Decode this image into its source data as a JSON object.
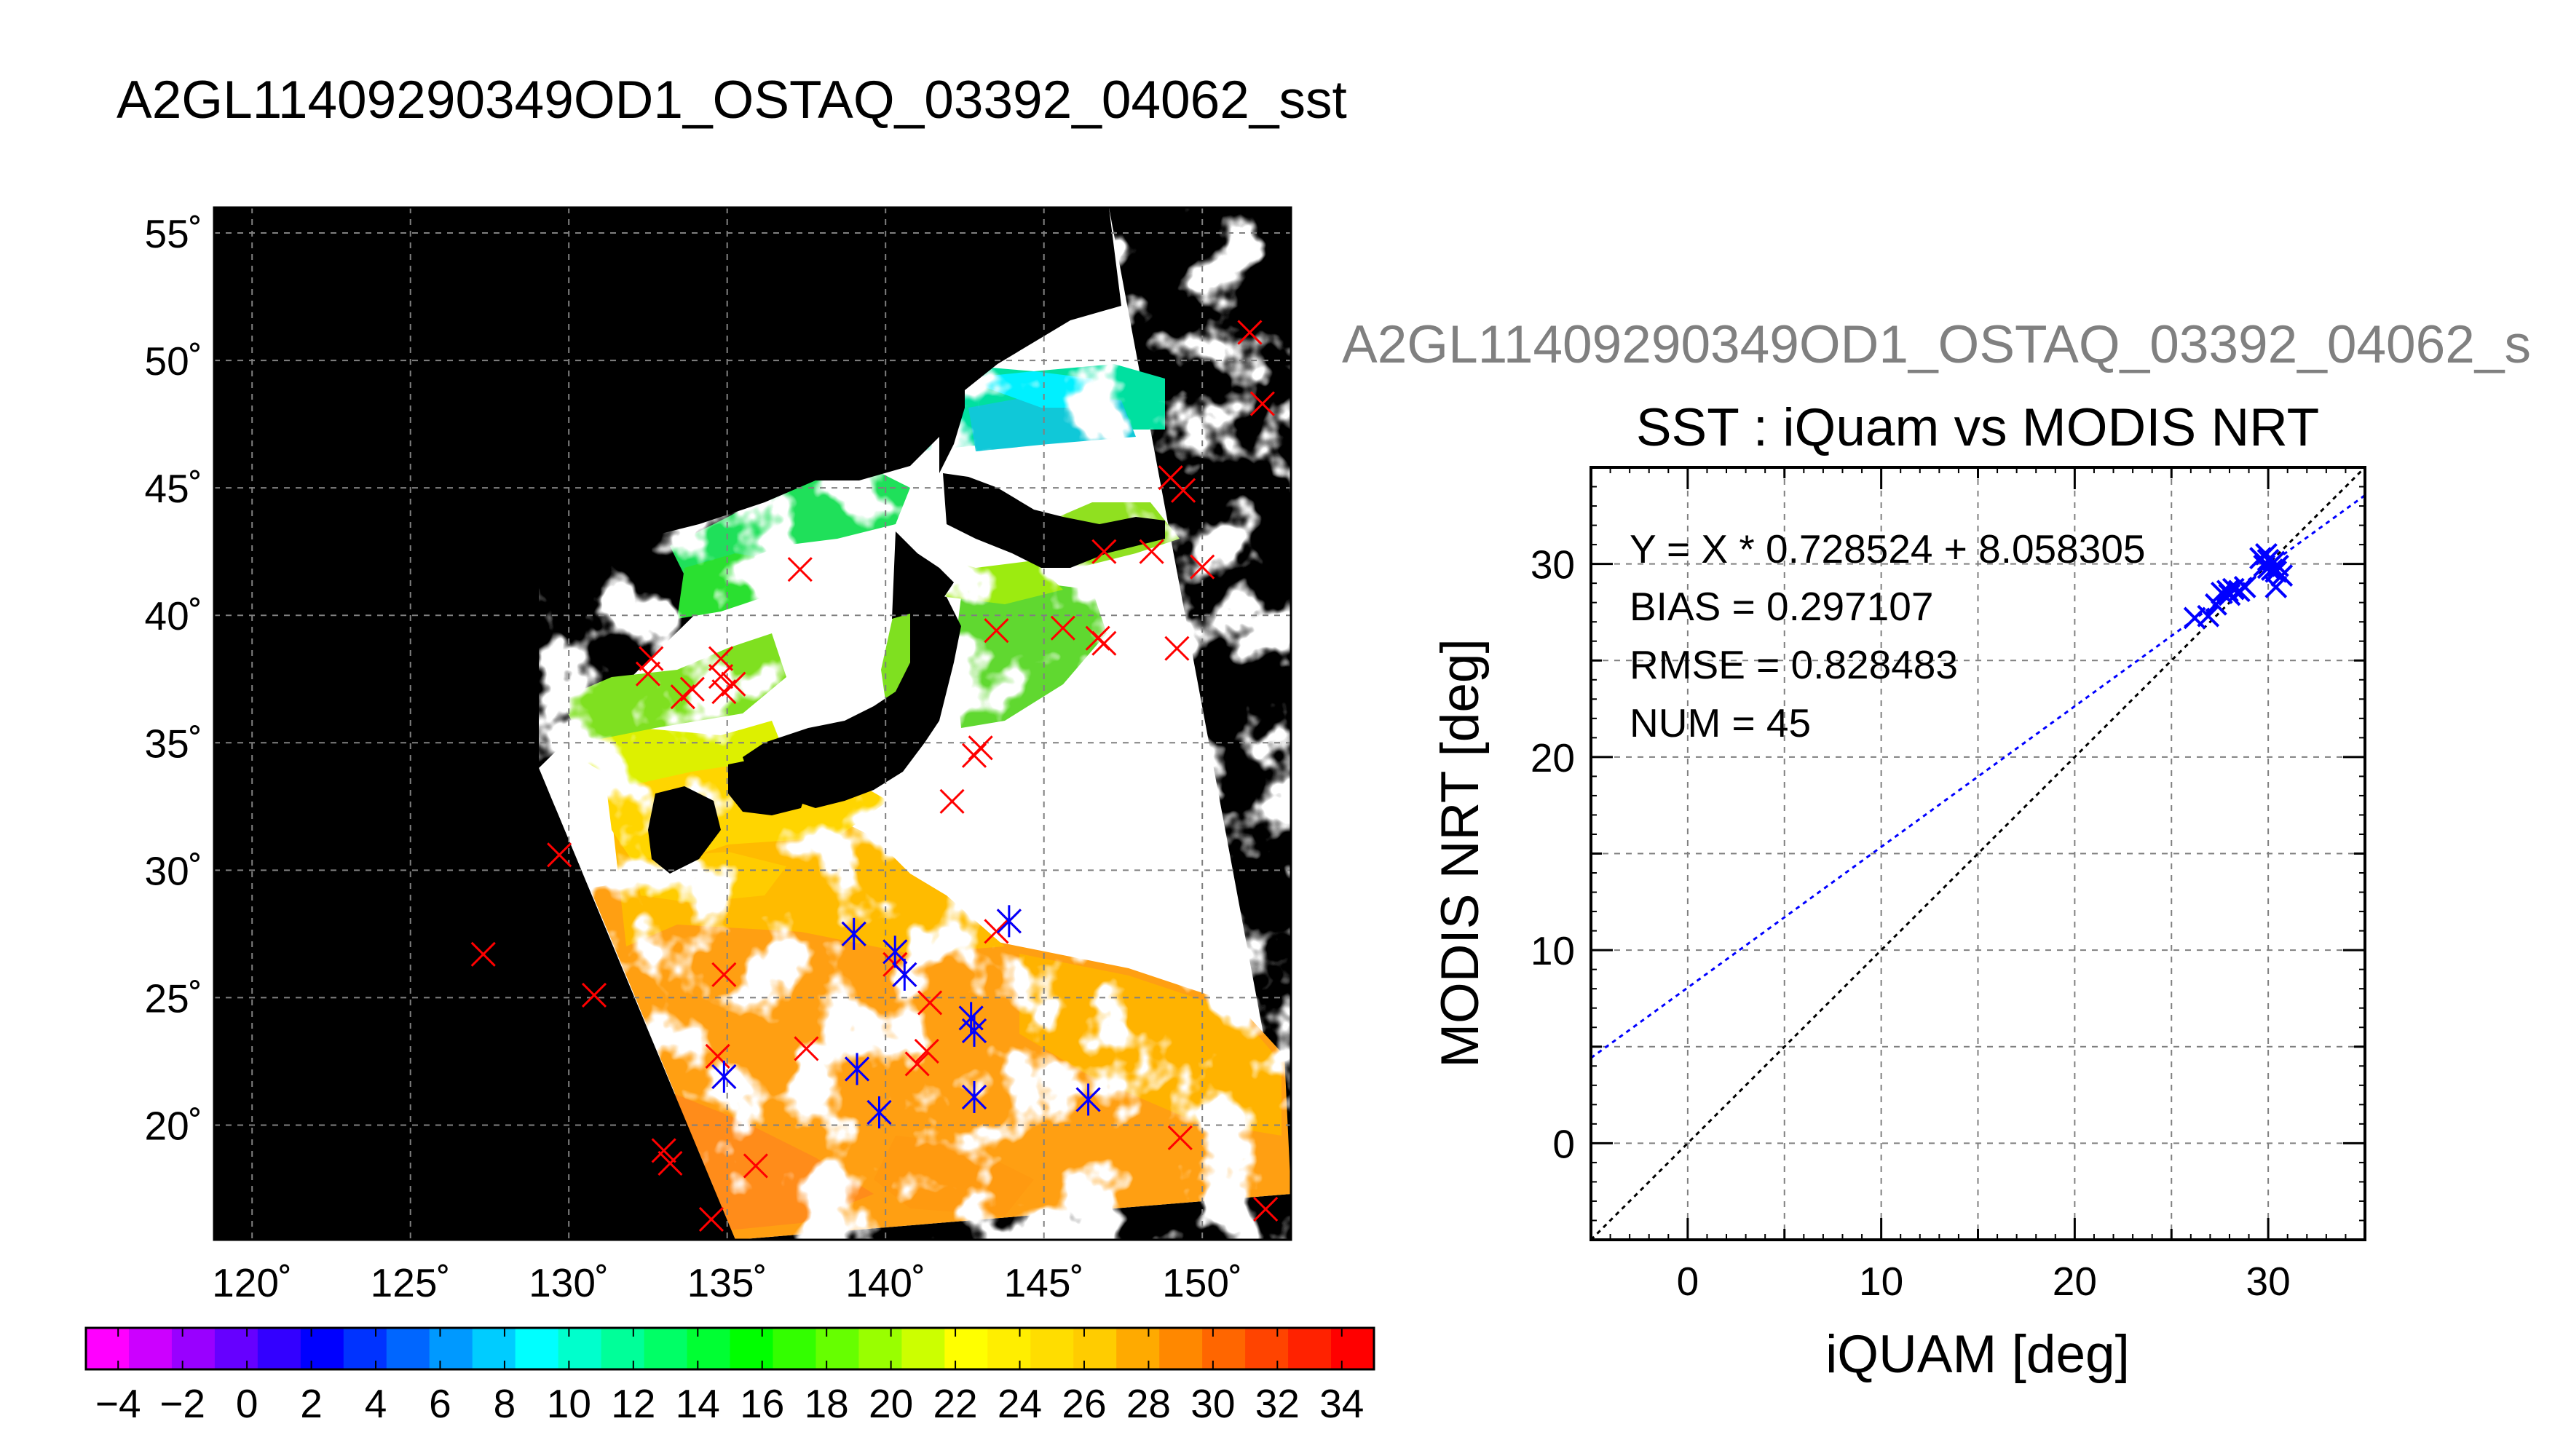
{
  "page": {
    "title": "A2GL11409290349OD1_OSTAQ_03392_04062_sst",
    "scatter_supertitle": "A2GL11409290349OD1_OSTAQ_03392_04062_s"
  },
  "colors": {
    "land": "#000000",
    "cloud_mask": "#ffffff",
    "match_marker": "#ff0000",
    "modis_marker": "#0000ff",
    "regression_line": "#0000ff",
    "identity_line": "#000000"
  },
  "chart_data": [
    {
      "type": "heatmap",
      "title": "",
      "xlabel": "",
      "ylabel": "",
      "xlim": [
        118.8,
        152.8
      ],
      "ylim": [
        15.5,
        56
      ],
      "x_ticks": [
        120,
        125,
        130,
        135,
        140,
        145,
        150
      ],
      "y_ticks": [
        20,
        25,
        30,
        35,
        40,
        45,
        50,
        55
      ],
      "x_tick_labels": [
        "120˚",
        "125˚",
        "130˚",
        "135˚",
        "140˚",
        "145˚",
        "150˚"
      ],
      "y_tick_labels": [
        "20˚",
        "25˚",
        "30˚",
        "35˚",
        "40˚",
        "45˚",
        "50˚",
        "55˚"
      ],
      "grid": true,
      "swath_corners": [
        [
          148.5,
          56
        ],
        [
          152.5,
          18.5
        ],
        [
          135.8,
          15.5
        ],
        [
          128.6,
          37.8
        ]
      ],
      "colorbar": {
        "ticks": [
          -4,
          -2,
          0,
          2,
          4,
          6,
          8,
          10,
          12,
          14,
          16,
          18,
          20,
          22,
          24,
          26,
          28,
          30,
          32,
          34
        ],
        "tick_labels": [
          "−4",
          "−2",
          "0",
          "2",
          "4",
          "6",
          "8",
          "10",
          "12",
          "14",
          "16",
          "18",
          "20",
          "22",
          "24",
          "26",
          "28",
          "30",
          "32",
          "34"
        ],
        "range": [
          -5,
          35
        ],
        "colors": [
          "#ff00ff",
          "#cc00ff",
          "#9900ff",
          "#6600ff",
          "#3300ff",
          "#0000ff",
          "#0033ff",
          "#0066ff",
          "#0099ff",
          "#00ccff",
          "#00ffff",
          "#00ffcc",
          "#00ff99",
          "#00ff66",
          "#00ff33",
          "#00ff00",
          "#33ff00",
          "#66ff00",
          "#99ff00",
          "#ccff00",
          "#ffff00",
          "#ffee00",
          "#ffdd00",
          "#ffcc00",
          "#ffaa00",
          "#ff8800",
          "#ff6600",
          "#ff4400",
          "#ff2200",
          "#ff0000"
        ]
      },
      "match_points_red": [
        [
          151.5,
          51.1
        ],
        [
          151.9,
          48.3
        ],
        [
          149.0,
          45.4
        ],
        [
          149.4,
          44.9
        ],
        [
          148.4,
          42.5
        ],
        [
          150.0,
          41.9
        ],
        [
          146.9,
          42.5
        ],
        [
          137.3,
          41.8
        ],
        [
          149.2,
          38.7
        ],
        [
          145.6,
          39.5
        ],
        [
          146.7,
          39.1
        ],
        [
          146.9,
          38.9
        ],
        [
          143.5,
          39.4
        ],
        [
          132.6,
          38.3
        ],
        [
          132.5,
          37.7
        ],
        [
          134.8,
          38.3
        ],
        [
          134.8,
          37.6
        ],
        [
          135.2,
          37.3
        ],
        [
          134.9,
          37.0
        ],
        [
          133.6,
          36.8
        ],
        [
          133.9,
          37.1
        ],
        [
          142.8,
          34.5
        ],
        [
          143.0,
          34.8
        ],
        [
          142.1,
          32.7
        ],
        [
          129.7,
          30.6
        ],
        [
          127.3,
          26.7
        ],
        [
          130.8,
          25.1
        ],
        [
          134.9,
          25.9
        ],
        [
          139.0,
          27.5
        ],
        [
          140.3,
          26.8
        ],
        [
          140.3,
          26.3
        ],
        [
          140.6,
          25.9
        ],
        [
          143.5,
          27.6
        ],
        [
          143.9,
          28.0
        ],
        [
          141.4,
          24.8
        ],
        [
          142.7,
          24.2
        ],
        [
          142.8,
          23.7
        ],
        [
          141.3,
          22.9
        ],
        [
          141.0,
          22.4
        ],
        [
          137.5,
          23.0
        ],
        [
          134.7,
          22.7
        ],
        [
          134.9,
          21.9
        ],
        [
          139.1,
          22.2
        ],
        [
          142.8,
          21.1
        ],
        [
          146.4,
          21.0
        ],
        [
          139.8,
          20.5
        ],
        [
          149.3,
          19.5
        ],
        [
          133.0,
          19.0
        ],
        [
          133.2,
          18.5
        ],
        [
          135.9,
          18.4
        ],
        [
          134.5,
          16.3
        ],
        [
          152.0,
          16.7
        ]
      ],
      "match_points_blue": [
        [
          134.9,
          21.9
        ],
        [
          139.1,
          22.2
        ],
        [
          139.8,
          20.5
        ],
        [
          139.0,
          27.5
        ],
        [
          140.3,
          26.8
        ],
        [
          140.6,
          25.9
        ],
        [
          143.9,
          28.0
        ],
        [
          142.7,
          24.2
        ],
        [
          142.8,
          23.7
        ],
        [
          142.8,
          21.1
        ],
        [
          146.4,
          21.0
        ]
      ]
    },
    {
      "type": "scatter",
      "title": "SST : iQuam vs MODIS NRT",
      "xlabel": "iQUAM [deg]",
      "ylabel": "MODIS NRT [deg]",
      "xlim": [
        -5,
        35
      ],
      "ylim": [
        -5,
        35
      ],
      "x_ticks": [
        0,
        10,
        20,
        30
      ],
      "y_ticks": [
        0,
        10,
        20,
        30
      ],
      "grid": true,
      "annotations": {
        "equation": "Y = X * 0.728524 + 8.058305",
        "bias": "BIAS = 0.297107",
        "rmse": "RMSE = 0.828483",
        "num": "NUM = 45"
      },
      "fit": {
        "slope": 0.728524,
        "intercept": 8.058305
      },
      "identity_line": true,
      "points": [
        [
          26.2,
          27.2
        ],
        [
          26.9,
          27.3
        ],
        [
          27.3,
          27.9
        ],
        [
          27.6,
          28.5
        ],
        [
          27.9,
          28.6
        ],
        [
          28.0,
          28.4
        ],
        [
          28.2,
          28.7
        ],
        [
          28.5,
          28.6
        ],
        [
          28.8,
          28.8
        ],
        [
          29.6,
          30.3
        ],
        [
          29.8,
          29.9
        ],
        [
          29.9,
          30.5
        ],
        [
          30.0,
          29.8
        ],
        [
          30.0,
          30.2
        ],
        [
          30.2,
          29.7
        ],
        [
          30.3,
          30.1
        ],
        [
          30.4,
          29.6
        ],
        [
          30.5,
          29.9
        ],
        [
          30.7,
          29.4
        ],
        [
          30.4,
          28.8
        ]
      ]
    }
  ]
}
